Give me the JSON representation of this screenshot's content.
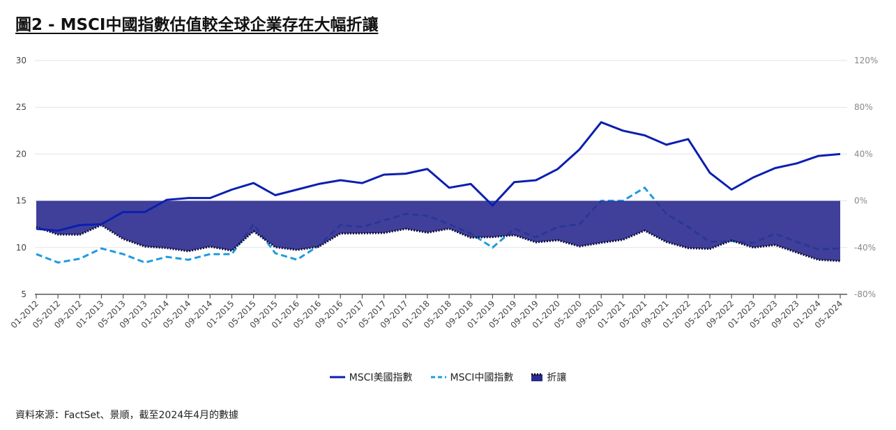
{
  "title": "圖2 - MSCI中國指數估值較全球企業存在大幅折讓",
  "source": "資料來源：FactSet、景順，截至2024年4月的數據",
  "chart_data": {
    "type": "line",
    "title": "圖2 - MSCI中國指數估值較全球企業存在大幅折讓",
    "y_left": {
      "range": [
        5,
        30
      ],
      "ticks": [
        "5",
        "10",
        "15",
        "20",
        "25",
        "30"
      ]
    },
    "y_right": {
      "range": [
        -80,
        120
      ],
      "ticks": [
        "-80%",
        "-40%",
        "0%",
        "40%",
        "80%",
        "120%"
      ]
    },
    "x": [
      "01-2012",
      "05-2012",
      "09-2012",
      "01-2013",
      "05-2013",
      "09-2013",
      "01-2014",
      "05-2014",
      "09-2014",
      "01-2015",
      "05-2015",
      "09-2015",
      "01-2016",
      "05-2016",
      "09-2016",
      "01-2017",
      "05-2017",
      "09-2017",
      "01-2018",
      "05-2018",
      "09-2018",
      "01-2019",
      "05-2019",
      "09-2019",
      "01-2020",
      "05-2020",
      "09-2020",
      "01-2021",
      "05-2021",
      "09-2021",
      "01-2022",
      "05-2022",
      "09-2022",
      "01-2023",
      "05-2023",
      "09-2023",
      "01-2024",
      "05-2024"
    ],
    "series": [
      {
        "name": "MSCI美國指數",
        "axis": "left",
        "style": "solid",
        "color": "#0a1fb0",
        "values": [
          12.0,
          11.8,
          12.4,
          12.5,
          13.8,
          13.8,
          15.1,
          15.3,
          15.3,
          16.2,
          16.9,
          15.6,
          16.2,
          16.8,
          17.2,
          16.9,
          17.8,
          17.9,
          18.4,
          16.4,
          16.8,
          14.5,
          17.0,
          17.2,
          18.4,
          20.5,
          23.4,
          22.5,
          22.0,
          21.0,
          21.6,
          18.0,
          16.2,
          17.5,
          18.5,
          19.0,
          19.8,
          20.0
        ]
      },
      {
        "name": "MSCI中國指數",
        "axis": "left",
        "style": "dashed",
        "color": "#1e9be0",
        "values": [
          9.3,
          8.4,
          8.8,
          9.9,
          9.3,
          8.4,
          9.0,
          8.7,
          9.3,
          9.3,
          12.5,
          9.4,
          8.7,
          10.2,
          12.4,
          12.2,
          12.9,
          13.6,
          13.4,
          12.5,
          11.5,
          10.0,
          12.0,
          11.1,
          12.2,
          12.5,
          15.0,
          15.0,
          16.4,
          13.6,
          12.2,
          10.6,
          10.7,
          10.5,
          11.5,
          10.6,
          9.8,
          9.9
        ]
      },
      {
        "name": "折讓",
        "axis": "right",
        "style": "area",
        "color": "#2b2b8f",
        "values": [
          -22.5,
          -28.8,
          -29.0,
          -20.8,
          -32.6,
          -39.1,
          -40.4,
          -43.1,
          -39.2,
          -42.6,
          -26.0,
          -39.7,
          -42.0,
          -39.3,
          -27.9,
          -27.8,
          -27.5,
          -24.0,
          -27.2,
          -23.8,
          -31.5,
          -31.0,
          -29.4,
          -35.5,
          -33.7,
          -39.0,
          -35.9,
          -33.3,
          -25.5,
          -35.2,
          -40.5,
          -41.1,
          -34.0,
          -40.0,
          -37.8,
          -44.2,
          -50.5,
          -51.5
        ]
      }
    ],
    "legend": "bottom-center",
    "grid": true
  }
}
